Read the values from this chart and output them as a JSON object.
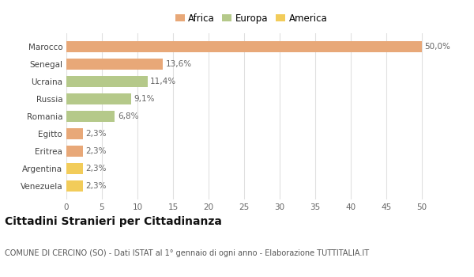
{
  "categories": [
    "Venezuela",
    "Argentina",
    "Eritrea",
    "Egitto",
    "Romania",
    "Russia",
    "Ucraina",
    "Senegal",
    "Marocco"
  ],
  "values": [
    2.3,
    2.3,
    2.3,
    2.3,
    6.8,
    9.1,
    11.4,
    13.6,
    50.0
  ],
  "labels": [
    "2,3%",
    "2,3%",
    "2,3%",
    "2,3%",
    "6,8%",
    "9,1%",
    "11,4%",
    "13,6%",
    "50,0%"
  ],
  "colors": [
    "#f2cc5a",
    "#f2cc5a",
    "#e8a878",
    "#e8a878",
    "#b5c98a",
    "#b5c98a",
    "#b5c98a",
    "#e8a878",
    "#e8a878"
  ],
  "continent": [
    "America",
    "America",
    "Africa",
    "Africa",
    "Europa",
    "Europa",
    "Europa",
    "Africa",
    "Africa"
  ],
  "legend_items": [
    {
      "label": "Africa",
      "color": "#e8a878"
    },
    {
      "label": "Europa",
      "color": "#b5c98a"
    },
    {
      "label": "America",
      "color": "#f2cc5a"
    }
  ],
  "xlim": [
    0,
    52
  ],
  "xticks": [
    0,
    5,
    10,
    15,
    20,
    25,
    30,
    35,
    40,
    45,
    50
  ],
  "title": "Cittadini Stranieri per Cittadinanza",
  "subtitle": "COMUNE DI CERCINO (SO) - Dati ISTAT al 1° gennaio di ogni anno - Elaborazione TUTTITALIA.IT",
  "background_color": "#ffffff",
  "grid_color": "#e0e0e0",
  "bar_label_fontsize": 7.5,
  "axis_label_fontsize": 7.5,
  "title_fontsize": 10,
  "subtitle_fontsize": 7,
  "legend_fontsize": 8.5
}
